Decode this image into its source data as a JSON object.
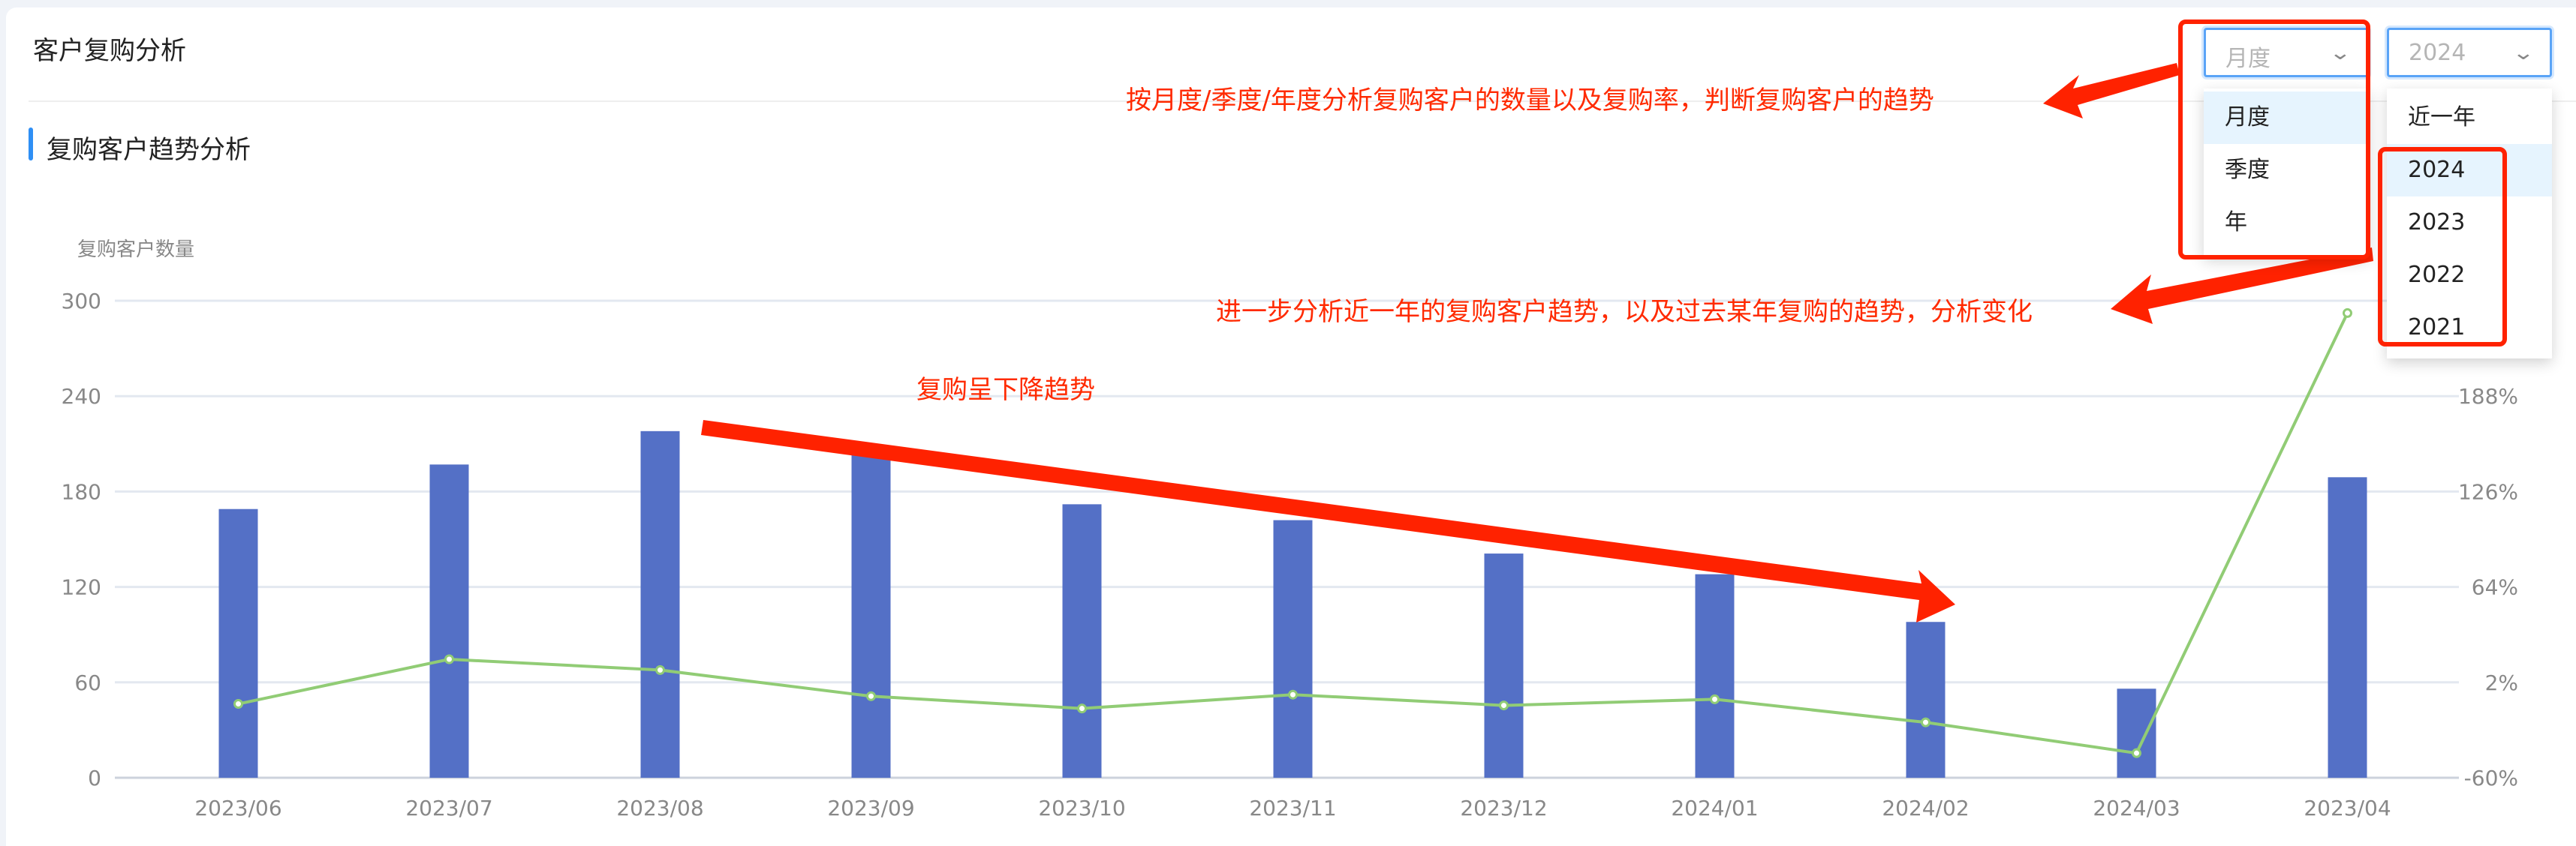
{
  "header": {
    "title": "客户复购分析"
  },
  "section": {
    "title": "复购客户趋势分析"
  },
  "filters": {
    "period_select": {
      "value": "月度",
      "options": [
        "月度",
        "季度",
        "年"
      ],
      "highlighted": "月度"
    },
    "year_select": {
      "value": "2024",
      "options": [
        "近一年",
        "2024",
        "2023",
        "2022",
        "2021"
      ],
      "highlighted": "2024"
    }
  },
  "annotations": {
    "note_filters": "按月度/季度/年度分析复购客户的数量以及复购率，判断复购客户的趋势",
    "note_years": "进一步分析近一年的复购客户趋势，以及过去某年复购的趋势，分析变化",
    "note_trend": "复购呈下降趋势",
    "color": "#ff2a00"
  },
  "chart_data": {
    "type": "bar+line",
    "ylabel": "复购客户数量",
    "categories": [
      "2023/06",
      "2023/07",
      "2023/08",
      "2023/09",
      "2023/10",
      "2023/11",
      "2023/12",
      "2024/01",
      "2024/02",
      "2024/03",
      "2023/04"
    ],
    "left_axis": {
      "ylim": [
        0,
        300
      ],
      "ticks": [
        "0",
        "60",
        "120",
        "180",
        "240",
        "300"
      ]
    },
    "right_axis": {
      "ylim": [
        -60,
        250
      ],
      "ticks": [
        "-60%",
        "2%",
        "64%",
        "126%",
        "188%"
      ]
    },
    "grid": true,
    "series": [
      {
        "type": "bar",
        "axis": "left",
        "color": "#5470c6",
        "values": [
          169,
          197,
          218,
          204,
          172,
          162,
          141,
          128,
          98,
          56,
          189
        ]
      },
      {
        "type": "line",
        "axis": "right",
        "color": "#91cc75",
        "values": [
          -12,
          17,
          10,
          -7,
          -15,
          -6,
          -13,
          -9,
          -24,
          -44,
          242
        ]
      }
    ]
  }
}
